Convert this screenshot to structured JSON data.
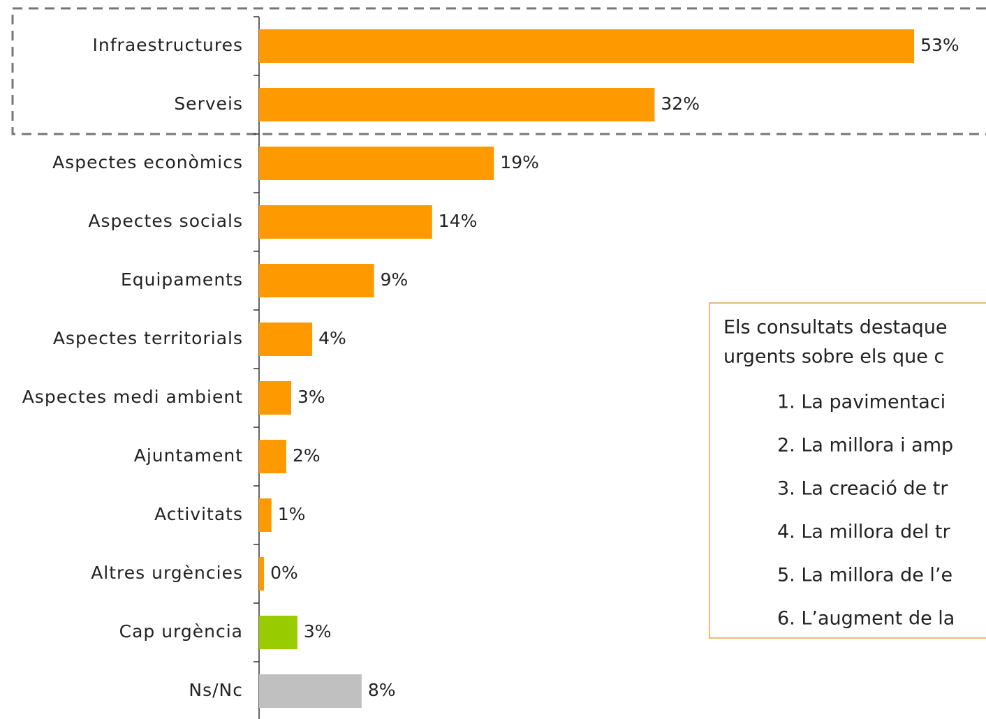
{
  "chart_data": {
    "type": "bar",
    "orientation": "horizontal",
    "categories": [
      "Infraestructures",
      "Serveis",
      "Aspectes econòmics",
      "Aspectes socials",
      "Equipaments",
      "Aspectes territorials",
      "Aspectes medi ambient",
      "Ajuntament",
      "Activitats",
      "Altres urgències",
      "Cap urgència",
      "Ns/Nc"
    ],
    "values": [
      53,
      32,
      19,
      14,
      9.3,
      4.3,
      2.6,
      2.2,
      1,
      0.4,
      3.1,
      8.3
    ],
    "value_labels": [
      "53%",
      "32%",
      "19%",
      "14%",
      "9%",
      "4%",
      "3%",
      "2%",
      "1%",
      "0%",
      "3%",
      "8%"
    ],
    "colors": [
      "#ff9900",
      "#ff9900",
      "#ff9900",
      "#ff9900",
      "#ff9900",
      "#ff9900",
      "#ff9900",
      "#ff9900",
      "#ff9900",
      "#ff9900",
      "#99cc00",
      "#c0c0c0"
    ],
    "annotation": {
      "lines": [
        "Els consultats destaque",
        "urgents sobre els que c"
      ],
      "items": [
        "1. La pavimentaci",
        "2. La millora i amp",
        "3. La creació de tr",
        "4. La millora del tr",
        "5. La millora de l’e",
        "6. L’augment de la"
      ]
    }
  }
}
